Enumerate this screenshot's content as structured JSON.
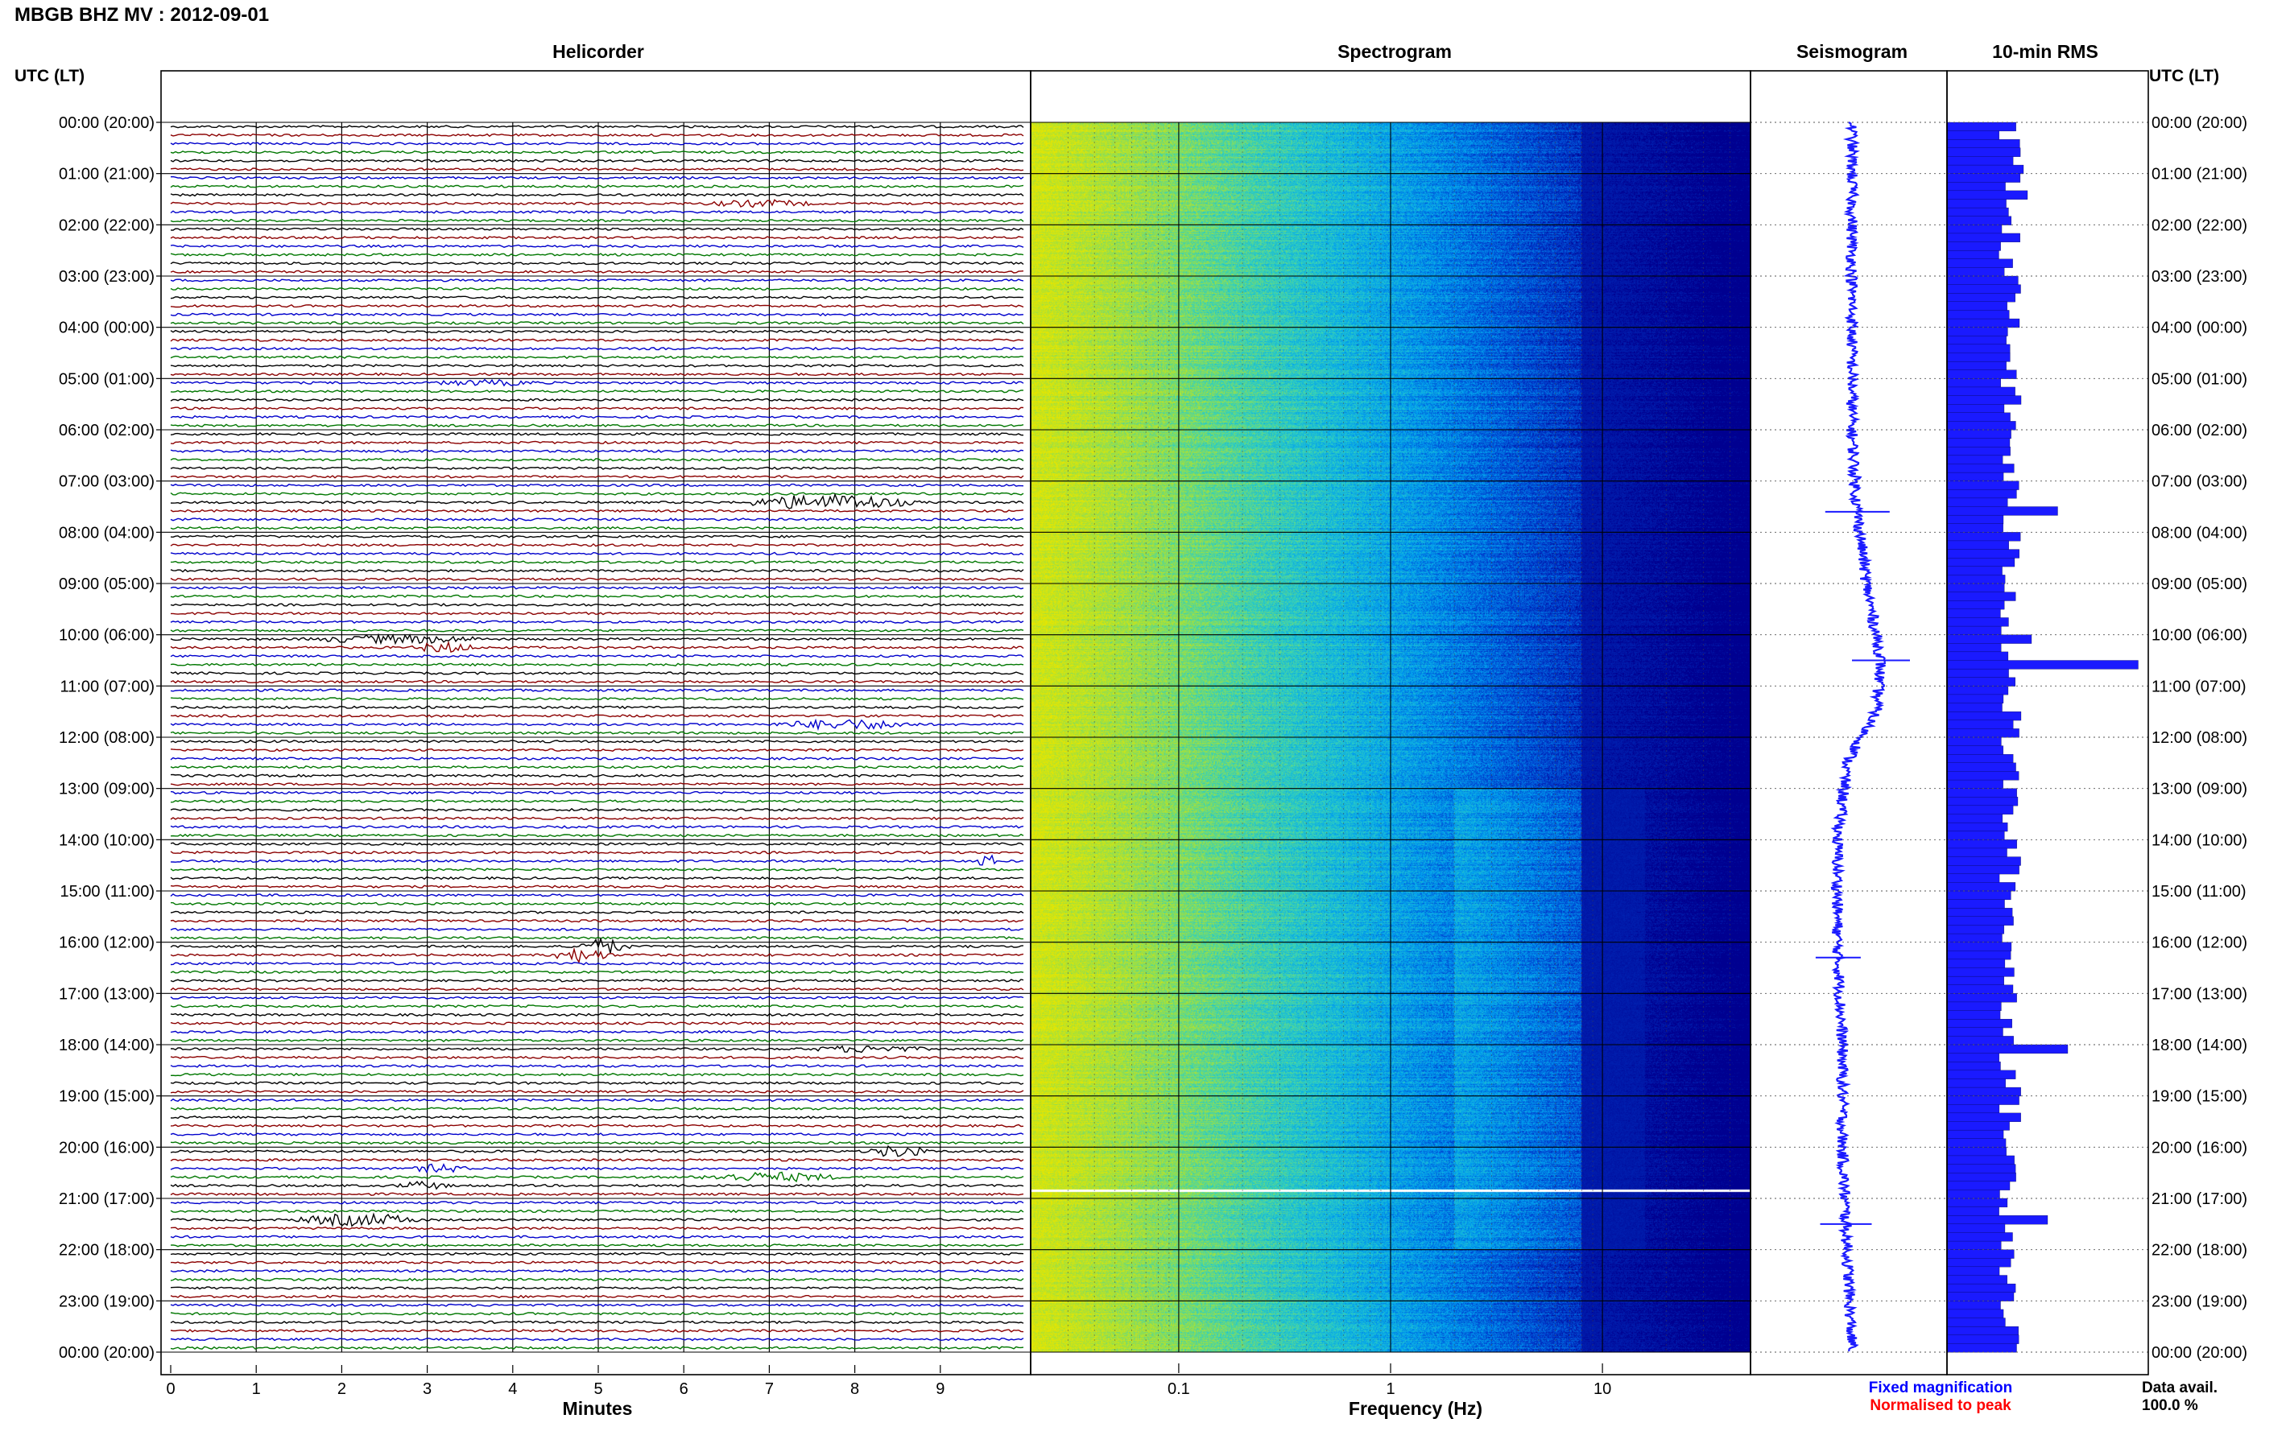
{
  "header": {
    "title": "MBGB BHZ MV : 2012-09-01"
  },
  "panels": {
    "helicorder": "Helicorder",
    "spectrogram": "Spectrogram",
    "seismogram": "Seismogram",
    "rms": "10-min RMS"
  },
  "axes": {
    "left_axis_label": "UTC (LT)",
    "right_axis_label": "UTC (LT)",
    "minutes_label": "Minutes",
    "frequency_label": "Frequency (Hz)"
  },
  "legend": {
    "fixed": "Fixed magnification",
    "normalised": "Normalised to peak",
    "data_avail_label": "Data avail.",
    "data_avail_value": "100.0 %"
  },
  "colors": {
    "trace_cycle": [
      "#000000",
      "#8b0000",
      "#0000cc",
      "#007700"
    ],
    "seismogram": "#1a1aff",
    "rms_bar": "#1a1aff",
    "fixed_text": "#0000ff",
    "normalised_text": "#ff0000",
    "spectrogram_colormap": [
      "#e6e600",
      "#a0e040",
      "#30d0c0",
      "#00a0f0",
      "#0040d0",
      "#000090"
    ]
  },
  "chart_data": [
    {
      "type": "line",
      "name": "helicorder",
      "title": "Helicorder",
      "xlabel": "Minutes",
      "ylabel": "UTC (LT)",
      "x_ticks": [
        "0",
        "1",
        "2",
        "3",
        "4",
        "5",
        "6",
        "7",
        "8",
        "9"
      ],
      "xlim": [
        0,
        10
      ],
      "rows": 144,
      "row_minutes": 10,
      "y_tick_labels": [
        "00:00 (20:00)",
        "01:00 (21:00)",
        "02:00 (22:00)",
        "03:00 (23:00)",
        "04:00 (00:00)",
        "05:00 (01:00)",
        "06:00 (02:00)",
        "07:00 (03:00)",
        "08:00 (04:00)",
        "09:00 (05:00)",
        "10:00 (06:00)",
        "11:00 (07:00)",
        "12:00 (08:00)",
        "13:00 (09:00)",
        "14:00 (10:00)",
        "15:00 (11:00)",
        "16:00 (12:00)",
        "17:00 (13:00)",
        "18:00 (14:00)",
        "19:00 (15:00)",
        "20:00 (16:00)",
        "21:00 (17:00)",
        "22:00 (18:00)",
        "23:00 (19:00)",
        "00:00 (20:00)"
      ],
      "events": [
        {
          "row": 9,
          "start_min": 6.2,
          "end_min": 7.6,
          "amp": 1.5
        },
        {
          "row": 30,
          "start_min": 3.0,
          "end_min": 4.4,
          "amp": 1.2
        },
        {
          "row": 44,
          "start_min": 6.6,
          "end_min": 8.8,
          "amp": 4.0
        },
        {
          "row": 60,
          "start_min": 1.5,
          "end_min": 3.8,
          "amp": 2.0
        },
        {
          "row": 61,
          "start_min": 2.8,
          "end_min": 3.6,
          "amp": 2.5
        },
        {
          "row": 70,
          "start_min": 7.0,
          "end_min": 8.8,
          "amp": 2.4
        },
        {
          "row": 86,
          "start_min": 9.4,
          "end_min": 9.7,
          "amp": 3.0
        },
        {
          "row": 96,
          "start_min": 4.7,
          "end_min": 5.4,
          "amp": 4.0
        },
        {
          "row": 97,
          "start_min": 4.4,
          "end_min": 5.2,
          "amp": 3.5
        },
        {
          "row": 108,
          "start_min": 7.4,
          "end_min": 8.9,
          "amp": 1.5
        },
        {
          "row": 120,
          "start_min": 8.1,
          "end_min": 8.9,
          "amp": 3.0
        },
        {
          "row": 122,
          "start_min": 2.8,
          "end_min": 3.5,
          "amp": 2.0
        },
        {
          "row": 123,
          "start_min": 6.1,
          "end_min": 7.9,
          "amp": 2.2
        },
        {
          "row": 124,
          "start_min": 2.6,
          "end_min": 3.3,
          "amp": 1.8
        },
        {
          "row": 128,
          "start_min": 1.4,
          "end_min": 3.0,
          "amp": 3.0
        }
      ]
    },
    {
      "type": "heatmap",
      "name": "spectrogram",
      "title": "Spectrogram",
      "xlabel": "Frequency (Hz)",
      "x_scale": "log",
      "xlim": [
        0.02,
        50
      ],
      "x_tick_labels": [
        "0.1",
        "1",
        "10"
      ],
      "y_tick_labels": [
        "00:00 (20:00)",
        "01:00 (21:00)",
        "02:00 (22:00)",
        "03:00 (23:00)",
        "04:00 (00:00)",
        "05:00 (01:00)",
        "06:00 (02:00)",
        "07:00 (03:00)",
        "08:00 (04:00)",
        "09:00 (05:00)",
        "10:00 (06:00)",
        "11:00 (07:00)",
        "12:00 (08:00)",
        "13:00 (09:00)",
        "14:00 (10:00)",
        "15:00 (11:00)",
        "16:00 (12:00)",
        "17:00 (13:00)",
        "18:00 (14:00)",
        "19:00 (15:00)",
        "20:00 (16:00)",
        "21:00 (17:00)",
        "22:00 (18:00)",
        "23:00 (19:00)",
        "00:00 (20:00)"
      ]
    },
    {
      "type": "line",
      "name": "seismogram",
      "title": "Seismogram",
      "trend_hours": [
        0,
        6,
        7.5,
        9,
        10.5,
        11.5,
        12.5,
        14,
        16,
        18,
        20,
        22,
        24
      ],
      "trend_offset": [
        0,
        0,
        0.1,
        0.3,
        0.6,
        0.5,
        -0.1,
        -0.3,
        -0.3,
        -0.2,
        -0.2,
        -0.1,
        0
      ],
      "spikes": [
        {
          "hour": 7.6,
          "size": 1.0
        },
        {
          "hour": 10.5,
          "size": 0.9
        },
        {
          "hour": 16.3,
          "size": 0.7
        },
        {
          "hour": 21.5,
          "size": 0.8
        }
      ]
    },
    {
      "type": "bar",
      "name": "rms",
      "title": "10-min RMS",
      "orientation": "horizontal",
      "rows": 144,
      "baseline": 0.33,
      "peaks": [
        {
          "row": 45,
          "value": 0.55
        },
        {
          "row": 60,
          "value": 0.42
        },
        {
          "row": 63,
          "value": 0.95
        },
        {
          "row": 108,
          "value": 0.6
        },
        {
          "row": 128,
          "value": 0.5
        },
        {
          "row": 8,
          "value": 0.4
        },
        {
          "row": 5,
          "value": 0.38
        }
      ]
    }
  ]
}
